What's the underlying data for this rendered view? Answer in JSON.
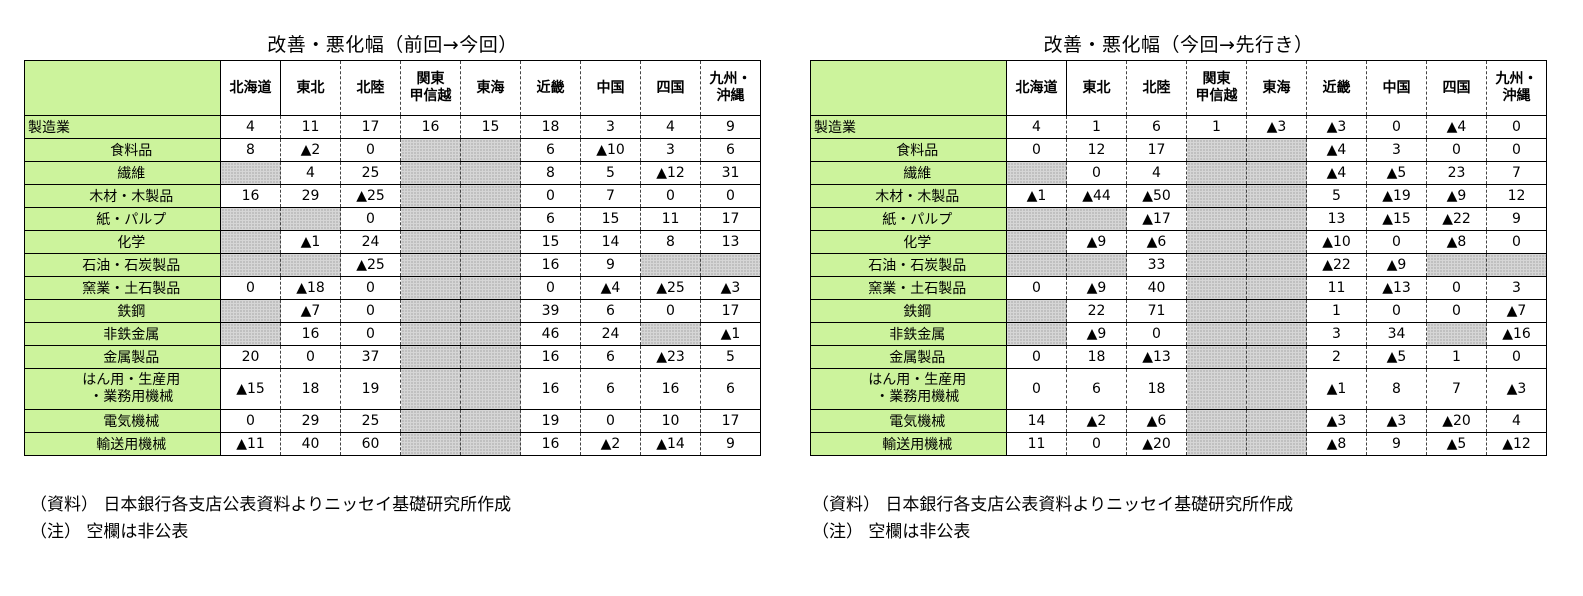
{
  "regions": [
    "北海道",
    "東北",
    "北陸",
    "関東\n甲信越",
    "東海",
    "近畿",
    "中国",
    "四国",
    "九州・\n沖縄"
  ],
  "tables": [
    {
      "title": "改善・悪化幅（前回→今回）",
      "rows": [
        {
          "label": "製造業",
          "main": true,
          "values": [
            "4",
            "11",
            "17",
            "16",
            "15",
            "18",
            "3",
            "4",
            "9"
          ]
        },
        {
          "label": "食料品",
          "values": [
            "8",
            "▲2",
            "0",
            "",
            "",
            "6",
            "▲10",
            "3",
            "6"
          ]
        },
        {
          "label": "繊維",
          "values": [
            "",
            "4",
            "25",
            "",
            "",
            "8",
            "5",
            "▲12",
            "31"
          ]
        },
        {
          "label": "木材・木製品",
          "values": [
            "16",
            "29",
            "▲25",
            "",
            "",
            "0",
            "7",
            "0",
            "0"
          ]
        },
        {
          "label": "紙・パルプ",
          "values": [
            "",
            "",
            "0",
            "",
            "",
            "6",
            "15",
            "11",
            "17"
          ]
        },
        {
          "label": "化学",
          "values": [
            "",
            "▲1",
            "24",
            "",
            "",
            "15",
            "14",
            "8",
            "13"
          ]
        },
        {
          "label": "石油・石炭製品",
          "values": [
            "",
            "",
            "▲25",
            "",
            "",
            "16",
            "9",
            "",
            ""
          ]
        },
        {
          "label": "窯業・土石製品",
          "values": [
            "0",
            "▲18",
            "0",
            "",
            "",
            "0",
            "▲4",
            "▲25",
            "▲3"
          ]
        },
        {
          "label": "鉄鋼",
          "values": [
            "",
            "▲7",
            "0",
            "",
            "",
            "39",
            "6",
            "0",
            "17"
          ]
        },
        {
          "label": "非鉄金属",
          "values": [
            "",
            "16",
            "0",
            "",
            "",
            "46",
            "24",
            "",
            "▲1"
          ]
        },
        {
          "label": "金属製品",
          "values": [
            "20",
            "0",
            "37",
            "",
            "",
            "16",
            "6",
            "▲23",
            "5"
          ]
        },
        {
          "label": "はん用・生産用\n・業務用機械",
          "tall": true,
          "values": [
            "▲15",
            "18",
            "19",
            "",
            "",
            "16",
            "6",
            "16",
            "6"
          ]
        },
        {
          "label": "電気機械",
          "values": [
            "0",
            "29",
            "25",
            "",
            "",
            "19",
            "0",
            "10",
            "17"
          ]
        },
        {
          "label": "輸送用機械",
          "values": [
            "▲11",
            "40",
            "60",
            "",
            "",
            "16",
            "▲2",
            "▲14",
            "9"
          ]
        }
      ]
    },
    {
      "title": "改善・悪化幅（今回→先行き）",
      "rows": [
        {
          "label": "製造業",
          "main": true,
          "values": [
            "4",
            "1",
            "6",
            "1",
            "▲3",
            "▲3",
            "0",
            "▲4",
            "0"
          ]
        },
        {
          "label": "食料品",
          "values": [
            "0",
            "12",
            "17",
            "",
            "",
            "▲4",
            "3",
            "0",
            "0"
          ]
        },
        {
          "label": "繊維",
          "values": [
            "",
            "0",
            "4",
            "",
            "",
            "▲4",
            "▲5",
            "23",
            "7"
          ]
        },
        {
          "label": "木材・木製品",
          "values": [
            "▲1",
            "▲44",
            "▲50",
            "",
            "",
            "5",
            "▲19",
            "▲9",
            "12"
          ]
        },
        {
          "label": "紙・パルプ",
          "values": [
            "",
            "",
            "▲17",
            "",
            "",
            "13",
            "▲15",
            "▲22",
            "9"
          ]
        },
        {
          "label": "化学",
          "values": [
            "",
            "▲9",
            "▲6",
            "",
            "",
            "▲10",
            "0",
            "▲8",
            "0"
          ]
        },
        {
          "label": "石油・石炭製品",
          "values": [
            "",
            "",
            "33",
            "",
            "",
            "▲22",
            "▲9",
            "",
            ""
          ]
        },
        {
          "label": "窯業・土石製品",
          "values": [
            "0",
            "▲9",
            "40",
            "",
            "",
            "11",
            "▲13",
            "0",
            "3"
          ]
        },
        {
          "label": "鉄鋼",
          "values": [
            "",
            "22",
            "71",
            "",
            "",
            "1",
            "0",
            "0",
            "▲7"
          ]
        },
        {
          "label": "非鉄金属",
          "values": [
            "",
            "▲9",
            "0",
            "",
            "",
            "3",
            "34",
            "",
            "▲16"
          ]
        },
        {
          "label": "金属製品",
          "values": [
            "0",
            "18",
            "▲13",
            "",
            "",
            "2",
            "▲5",
            "1",
            "0"
          ]
        },
        {
          "label": "はん用・生産用\n・業務用機械",
          "tall": true,
          "values": [
            "0",
            "6",
            "18",
            "",
            "",
            "▲1",
            "8",
            "7",
            "▲3"
          ]
        },
        {
          "label": "電気機械",
          "values": [
            "14",
            "▲2",
            "▲6",
            "",
            "",
            "▲3",
            "▲3",
            "▲20",
            "4"
          ]
        },
        {
          "label": "輸送用機械",
          "values": [
            "11",
            "0",
            "▲20",
            "",
            "",
            "▲8",
            "9",
            "▲5",
            "▲12"
          ]
        }
      ]
    }
  ],
  "notes": [
    "（資料） 日本銀行各支店公表資料よりニッセイ基礎研究所作成",
    "（注） 空欄は非公表"
  ]
}
